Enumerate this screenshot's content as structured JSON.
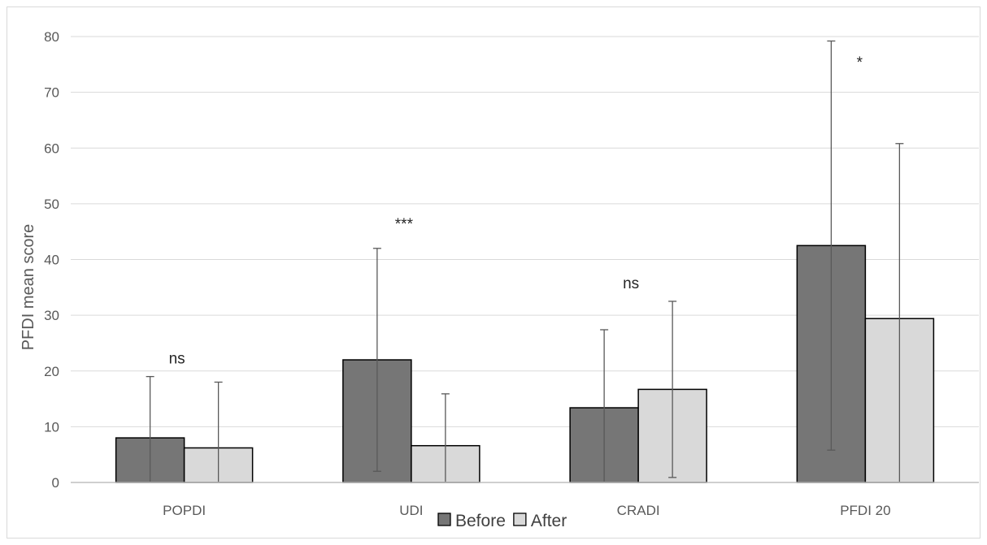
{
  "chart_data": {
    "type": "bar",
    "categories": [
      "POPDI",
      "UDI",
      "CRADI",
      "PFDI 20"
    ],
    "series": [
      {
        "name": "Before",
        "values": [
          8,
          22,
          13.4,
          42.5
        ],
        "error": [
          11,
          20,
          14,
          36.7
        ],
        "color": "#767676"
      },
      {
        "name": "After",
        "values": [
          6.2,
          6.6,
          16.7,
          29.4
        ],
        "error": [
          11.8,
          9.3,
          15.8,
          31.4
        ],
        "color": "#d9d9d9"
      }
    ],
    "annotations": [
      "ns",
      "***",
      "ns",
      "*"
    ],
    "ylabel": "PFDI mean score",
    "xlabel": "",
    "ylim": [
      0,
      80
    ],
    "yticks": [
      "0",
      "10",
      "20",
      "30",
      "40",
      "50",
      "60",
      "70",
      "80"
    ],
    "grid": true,
    "legend": "bottom"
  }
}
